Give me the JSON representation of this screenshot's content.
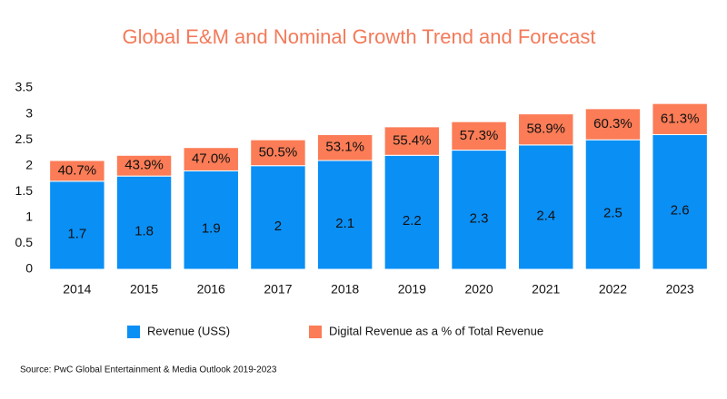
{
  "chart_data": {
    "type": "stacked-bar",
    "title": "Global E&M and Nominal Growth Trend and Forecast",
    "categories": [
      "2014",
      "2015",
      "2016",
      "2017",
      "2018",
      "2019",
      "2020",
      "2021",
      "2022",
      "2023"
    ],
    "series": [
      {
        "name": "Revenue (USS)",
        "color": "#0a8ff5",
        "values": [
          1.7,
          1.8,
          1.9,
          2,
          2.1,
          2.2,
          2.3,
          2.4,
          2.5,
          2.6
        ]
      },
      {
        "name": "Digital Revenue as a % of Total Revenue",
        "color": "#fb7c56",
        "values": [
          0.4,
          0.4,
          0.45,
          0.5,
          0.5,
          0.55,
          0.55,
          0.6,
          0.6,
          0.6
        ],
        "share_labels": [
          "40.7%",
          "43.9%",
          "47.0%",
          "50.5%",
          "53.1%",
          "55.4%",
          "57.3%",
          "58.9%",
          "60.3%",
          "61.3%"
        ]
      }
    ],
    "ylim": [
      0,
      3.5
    ],
    "yticks": [
      0,
      0.5,
      1,
      1.5,
      2,
      2.5,
      3,
      3.5
    ],
    "grid": false,
    "source": "Source: PwC Global Entertainment & Media Outlook 2019-2023"
  }
}
